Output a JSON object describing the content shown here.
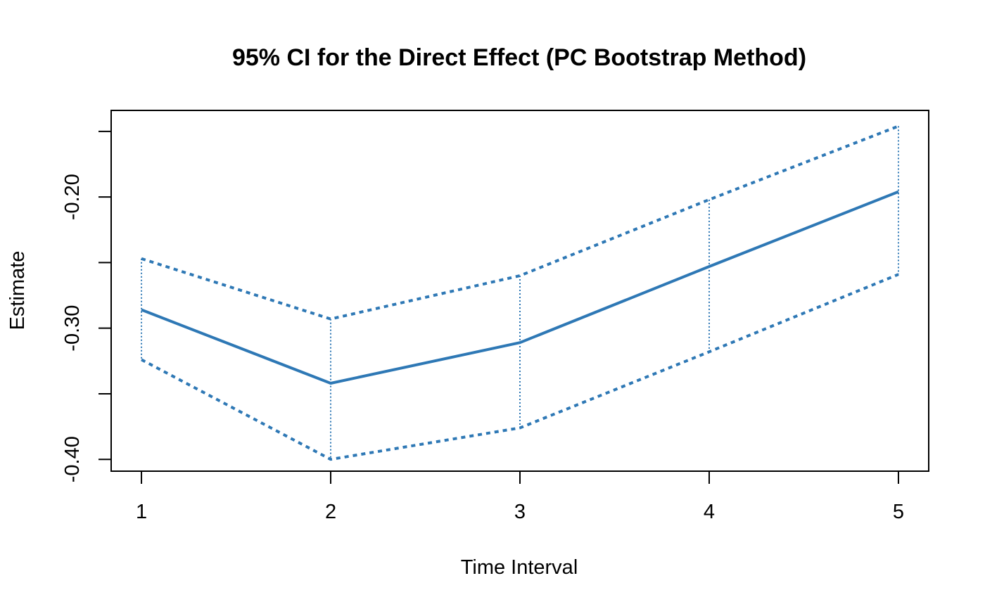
{
  "chart_data": {
    "type": "line",
    "title": "95% CI for the Direct Effect (PC Bootstrap Method)",
    "xlabel": "Time Interval",
    "ylabel": "Estimate",
    "x": [
      1,
      2,
      3,
      4,
      5
    ],
    "x_tick_labels": [
      "1",
      "2",
      "3",
      "4",
      "5"
    ],
    "y_ticks": [
      -0.4,
      -0.35,
      -0.3,
      -0.25,
      -0.2,
      -0.15
    ],
    "y_tick_labels": [
      "-0.40",
      "",
      "-0.30",
      "",
      "-0.20",
      ""
    ],
    "xlim": [
      0.84,
      5.16
    ],
    "ylim": [
      -0.409,
      -0.134
    ],
    "grid": false,
    "series": [
      {
        "role": "estimate",
        "style": "solid",
        "values": [
          -0.286,
          -0.342,
          -0.311,
          -0.253,
          -0.196
        ]
      },
      {
        "role": "upper",
        "style": "dashed",
        "values": [
          -0.247,
          -0.293,
          -0.26,
          -0.202,
          -0.146
        ]
      },
      {
        "role": "lower",
        "style": "dashed",
        "values": [
          -0.324,
          -0.4,
          -0.376,
          -0.318,
          -0.259
        ]
      }
    ],
    "color": "#2E78B5"
  }
}
